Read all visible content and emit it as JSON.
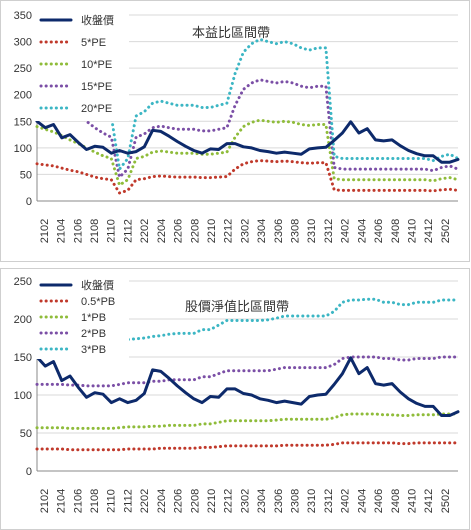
{
  "charts": [
    {
      "type": "line",
      "title": "本益比區間帶",
      "ylim": [
        0,
        350
      ],
      "yticks": [
        0,
        50,
        100,
        150,
        200,
        250,
        300,
        350
      ],
      "grid": true,
      "legend": "top-left",
      "x_tick_labels": [
        "2102",
        "2104",
        "2106",
        "2108",
        "2110",
        "2112",
        "2202",
        "2204",
        "2206",
        "2208",
        "2210",
        "2212",
        "2302",
        "2304",
        "2306",
        "2308",
        "2310",
        "2312",
        "2402",
        "2404",
        "2406",
        "2408",
        "2410",
        "2412",
        "2502"
      ],
      "series": [
        {
          "name": "收盤價",
          "color": "#0d2a6b",
          "style": "solid",
          "values": [
            150,
            138,
            144,
            119,
            125,
            110,
            97,
            103,
            101,
            90,
            95,
            90,
            93,
            102,
            133,
            131,
            122,
            112,
            103,
            95,
            90,
            98,
            97,
            108,
            108,
            102,
            100,
            95,
            93,
            90,
            92,
            90,
            88,
            98,
            100,
            101,
            114,
            128,
            149,
            128,
            136,
            115,
            113,
            115,
            104,
            95,
            89,
            85,
            85,
            73,
            73,
            78
          ]
        },
        {
          "name": "5*PE",
          "color": "#c0392b",
          "style": "dotted",
          "values": [
            70,
            68,
            66,
            62,
            58,
            55,
            50,
            45,
            42,
            40,
            15,
            20,
            40,
            42,
            46,
            47,
            46,
            45,
            45,
            45,
            44,
            44,
            45,
            46,
            60,
            70,
            74,
            76,
            75,
            74,
            75,
            74,
            72,
            71,
            72,
            72,
            21,
            20,
            20,
            20,
            20,
            20,
            20,
            20,
            20,
            20,
            20,
            20,
            19,
            21,
            22,
            20
          ]
        },
        {
          "name": "10*PE",
          "color": "#8fbc3a",
          "style": "dotted",
          "values": [
            140,
            135,
            130,
            123,
            115,
            108,
            100,
            92,
            85,
            80,
            30,
            40,
            80,
            84,
            92,
            94,
            92,
            90,
            90,
            90,
            88,
            88,
            90,
            92,
            120,
            140,
            148,
            152,
            150,
            148,
            150,
            148,
            144,
            142,
            144,
            144,
            42,
            40,
            40,
            40,
            40,
            40,
            40,
            40,
            40,
            40,
            40,
            40,
            38,
            42,
            44,
            40
          ]
        },
        {
          "name": "15*PE",
          "color": "#7b4fa6",
          "style": "dotted",
          "values": [
            210,
            202,
            195,
            185,
            172,
            162,
            150,
            138,
            128,
            120,
            45,
            60,
            120,
            126,
            138,
            141,
            138,
            135,
            135,
            135,
            132,
            132,
            135,
            138,
            180,
            210,
            222,
            228,
            225,
            222,
            225,
            222,
            216,
            213,
            216,
            216,
            63,
            60,
            60,
            60,
            60,
            60,
            60,
            60,
            60,
            60,
            60,
            60,
            57,
            63,
            66,
            60
          ]
        },
        {
          "name": "20*PE",
          "color": "#3cb6c4",
          "style": "dotted",
          "values": [
            280,
            270,
            260,
            246,
            230,
            216,
            200,
            184,
            170,
            160,
            60,
            80,
            160,
            168,
            184,
            188,
            184,
            180,
            180,
            180,
            176,
            176,
            180,
            184,
            240,
            280,
            296,
            304,
            300,
            296,
            300,
            296,
            288,
            284,
            288,
            288,
            84,
            80,
            80,
            80,
            80,
            80,
            80,
            80,
            80,
            80,
            80,
            80,
            76,
            84,
            88,
            80
          ]
        }
      ]
    },
    {
      "type": "line",
      "title": "股價淨值比區間帶",
      "ylim": [
        0,
        250
      ],
      "yticks": [
        0,
        50,
        100,
        150,
        200,
        250
      ],
      "grid": true,
      "legend": "top-left",
      "x_tick_labels": [
        "2102",
        "2104",
        "2106",
        "2108",
        "2110",
        "2112",
        "2202",
        "2204",
        "2206",
        "2208",
        "2210",
        "2212",
        "2302",
        "2304",
        "2306",
        "2308",
        "2310",
        "2312",
        "2402",
        "2404",
        "2406",
        "2408",
        "2410",
        "2412",
        "2502"
      ],
      "series": [
        {
          "name": "收盤價",
          "color": "#0d2a6b",
          "style": "solid",
          "values": [
            150,
            138,
            144,
            119,
            125,
            110,
            97,
            103,
            101,
            90,
            95,
            90,
            93,
            102,
            133,
            131,
            122,
            112,
            103,
            95,
            90,
            98,
            97,
            108,
            108,
            102,
            100,
            95,
            93,
            90,
            92,
            90,
            88,
            98,
            100,
            101,
            114,
            128,
            149,
            128,
            136,
            115,
            113,
            115,
            104,
            95,
            89,
            85,
            85,
            73,
            73,
            78
          ]
        },
        {
          "name": "0.5*PB",
          "color": "#c0392b",
          "style": "dotted",
          "values": [
            29,
            29,
            29,
            29,
            28,
            28,
            28,
            28,
            28,
            28,
            28,
            29,
            29,
            29,
            29,
            30,
            30,
            30,
            30,
            30,
            31,
            31,
            32,
            33,
            33,
            33,
            33,
            33,
            33,
            33,
            34,
            34,
            34,
            34,
            34,
            34,
            35,
            37,
            37,
            37,
            37,
            37,
            37,
            37,
            36,
            36,
            37,
            37,
            37,
            37,
            37,
            37
          ]
        },
        {
          "name": "1*PB",
          "color": "#8fbc3a",
          "style": "dotted",
          "values": [
            57,
            57,
            57,
            57,
            56,
            56,
            56,
            56,
            56,
            56,
            57,
            58,
            58,
            58,
            59,
            59,
            60,
            60,
            60,
            60,
            62,
            62,
            64,
            66,
            66,
            66,
            66,
            66,
            66,
            67,
            68,
            68,
            68,
            68,
            68,
            68,
            70,
            74,
            75,
            75,
            75,
            75,
            74,
            74,
            73,
            73,
            74,
            74,
            74,
            75,
            75,
            75
          ]
        },
        {
          "name": "2*PB",
          "color": "#7b4fa6",
          "style": "dotted",
          "values": [
            114,
            114,
            114,
            114,
            113,
            113,
            112,
            112,
            112,
            112,
            114,
            116,
            116,
            116,
            118,
            118,
            120,
            120,
            120,
            120,
            124,
            124,
            128,
            132,
            132,
            132,
            132,
            132,
            132,
            134,
            136,
            136,
            136,
            136,
            136,
            136,
            140,
            148,
            150,
            150,
            150,
            150,
            148,
            148,
            146,
            146,
            148,
            148,
            148,
            150,
            150,
            150
          ]
        },
        {
          "name": "3*PB",
          "color": "#3cb6c4",
          "style": "dotted",
          "values": [
            170,
            171,
            171,
            171,
            170,
            169,
            168,
            168,
            168,
            169,
            171,
            173,
            174,
            175,
            177,
            178,
            180,
            181,
            181,
            181,
            186,
            186,
            192,
            198,
            198,
            198,
            198,
            198,
            199,
            201,
            204,
            204,
            204,
            204,
            204,
            204,
            210,
            222,
            225,
            225,
            226,
            226,
            222,
            222,
            219,
            219,
            222,
            222,
            222,
            225,
            225,
            225
          ]
        }
      ]
    }
  ]
}
